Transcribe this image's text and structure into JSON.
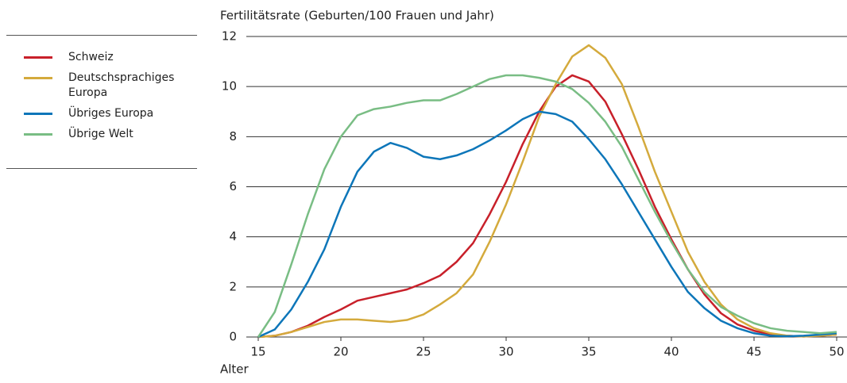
{
  "chart_data": {
    "type": "line",
    "y_label": "Fertilitätsrate (Geburten/100 Frauen und Jahr)",
    "x_label": "Alter",
    "x": [
      15,
      16,
      17,
      18,
      19,
      20,
      21,
      22,
      23,
      24,
      25,
      26,
      27,
      28,
      29,
      30,
      31,
      32,
      33,
      34,
      35,
      36,
      37,
      38,
      39,
      40,
      41,
      42,
      43,
      44,
      45,
      46,
      47,
      48,
      49,
      50
    ],
    "series": [
      {
        "name": "Schweiz",
        "color": "#c8202a",
        "values": [
          0,
          0.05,
          0.2,
          0.45,
          0.8,
          1.1,
          1.45,
          1.6,
          1.75,
          1.9,
          2.15,
          2.45,
          3.0,
          3.75,
          4.9,
          6.2,
          7.7,
          9.0,
          10.0,
          10.45,
          10.2,
          9.4,
          8.1,
          6.7,
          5.2,
          3.9,
          2.7,
          1.7,
          0.95,
          0.5,
          0.25,
          0.1,
          0.05,
          0.02,
          0.05,
          0.1
        ]
      },
      {
        "name": "Deutschsprachiges Europa",
        "color": "#d4aa3c",
        "values": [
          0,
          0.05,
          0.2,
          0.4,
          0.6,
          0.7,
          0.7,
          0.65,
          0.6,
          0.68,
          0.9,
          1.3,
          1.75,
          2.5,
          3.8,
          5.3,
          7.0,
          8.8,
          10.1,
          11.2,
          11.65,
          11.15,
          10.1,
          8.4,
          6.6,
          5.0,
          3.4,
          2.2,
          1.3,
          0.7,
          0.35,
          0.15,
          0.05,
          0.02,
          0.05,
          0.1
        ]
      },
      {
        "name": "Übriges Europa",
        "color": "#0d76b9",
        "values": [
          0,
          0.3,
          1.1,
          2.2,
          3.5,
          5.2,
          6.6,
          7.4,
          7.75,
          7.55,
          7.2,
          7.1,
          7.25,
          7.5,
          7.85,
          8.25,
          8.7,
          9.0,
          8.9,
          8.6,
          7.9,
          7.1,
          6.1,
          5.0,
          3.9,
          2.8,
          1.8,
          1.15,
          0.65,
          0.35,
          0.15,
          0.05,
          0.03,
          0.05,
          0.1,
          0.15
        ]
      },
      {
        "name": "Übrige Welt",
        "color": "#79bd84",
        "values": [
          0,
          1.0,
          2.9,
          4.9,
          6.7,
          8.0,
          8.85,
          9.1,
          9.2,
          9.35,
          9.45,
          9.45,
          9.7,
          10.0,
          10.3,
          10.45,
          10.45,
          10.35,
          10.2,
          9.9,
          9.35,
          8.6,
          7.6,
          6.3,
          5.0,
          3.8,
          2.7,
          1.8,
          1.2,
          0.85,
          0.55,
          0.35,
          0.25,
          0.2,
          0.15,
          0.2
        ]
      }
    ],
    "xlim": [
      15,
      50
    ],
    "xticks": [
      15,
      20,
      25,
      30,
      35,
      40,
      45,
      50
    ],
    "ylim": [
      0,
      12
    ],
    "yticks": [
      0,
      2,
      4,
      6,
      8,
      10,
      12
    ],
    "grid": true
  }
}
